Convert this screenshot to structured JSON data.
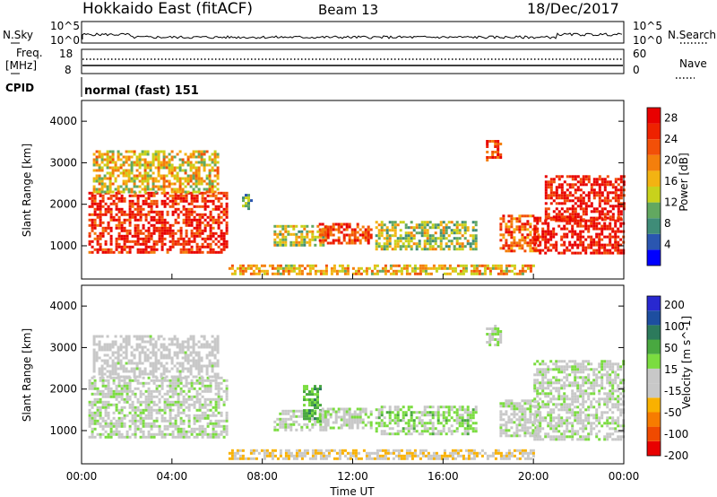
{
  "header": {
    "station": "Hokkaido East (fitACF)",
    "beam": "Beam 13",
    "date": "18/Dec/2017"
  },
  "top_panels": {
    "nsky_label": "N.Sky",
    "nsearch_label": "N.Search",
    "nave_label": "Nave",
    "freq_label_1": "Freq.",
    "freq_label_2": "[MHz]",
    "cpid_label": "CPID",
    "cpid_value": "normal (fast) 151",
    "noise_ticks": [
      "10^5",
      "10^0"
    ],
    "freq_ticks": [
      "18",
      "8"
    ],
    "nave_ticks": [
      "60",
      "0"
    ]
  },
  "colors": {
    "power_scale": [
      "#0000ff",
      "#2a56b0",
      "#3f8c78",
      "#62a860",
      "#c8d21c",
      "#f3b312",
      "#f47f0c",
      "#f25008",
      "#ee2200",
      "#e80000"
    ],
    "velocity_scale": [
      "#e80000",
      "#f04a00",
      "#f77c00",
      "#f9b100",
      "#c8c8c8",
      "#c8c8c8",
      "#7bdc40",
      "#49a840",
      "#2c7a5c",
      "#1d4ea0",
      "#2828d0"
    ]
  },
  "chart_data": [
    {
      "type": "heatmap",
      "name": "power",
      "xlabel": "",
      "ylabel": "Slant Range [km]",
      "yticks": [
        "1000",
        "2000",
        "3000",
        "4000"
      ],
      "ylim": [
        200,
        4500
      ],
      "colorbar_title": "Power [dB]",
      "colorbar_ticks": [
        "4",
        "8",
        "12",
        "16",
        "20",
        "24",
        "28"
      ],
      "colorbar_range": [
        0,
        30
      ],
      "xlim_hours": [
        0,
        24
      ],
      "regions": [
        {
          "x": [
            0.3,
            6.4
          ],
          "y": [
            850,
            2300
          ],
          "level": 26
        },
        {
          "x": [
            0.5,
            6.0
          ],
          "y": [
            2300,
            3300
          ],
          "level": 16
        },
        {
          "x": [
            7.1,
            7.5
          ],
          "y": [
            1900,
            2250
          ],
          "level": 10
        },
        {
          "x": [
            8.5,
            10.8
          ],
          "y": [
            1000,
            1500
          ],
          "level": 14
        },
        {
          "x": [
            10.5,
            12.8
          ],
          "y": [
            1050,
            1550
          ],
          "level": 24
        },
        {
          "x": [
            13.0,
            17.5
          ],
          "y": [
            950,
            1600
          ],
          "level": 13
        },
        {
          "x": [
            17.9,
            18.5
          ],
          "y": [
            3050,
            3550
          ],
          "level": 24
        },
        {
          "x": [
            18.5,
            20.2
          ],
          "y": [
            900,
            1750
          ],
          "level": 22
        },
        {
          "x": [
            20.0,
            24.0
          ],
          "y": [
            800,
            1700
          ],
          "level": 28
        },
        {
          "x": [
            20.5,
            24.0
          ],
          "y": [
            1600,
            2700
          ],
          "level": 27
        },
        {
          "x": [
            6.5,
            20.0
          ],
          "y": [
            300,
            550
          ],
          "level": 17
        }
      ]
    },
    {
      "type": "heatmap",
      "name": "velocity",
      "xlabel": "Time UT",
      "ylabel": "Slant Range [km]",
      "xticks": [
        "00:00",
        "04:00",
        "08:00",
        "12:00",
        "16:00",
        "20:00",
        "00:00"
      ],
      "yticks": [
        "1000",
        "2000",
        "3000",
        "4000"
      ],
      "ylim": [
        200,
        4500
      ],
      "colorbar_title": "Velocity [m s^-1]",
      "colorbar_ticks": [
        "200",
        "100",
        "50",
        "15",
        "-15",
        "-50",
        "-100",
        "-200"
      ],
      "colorbar_range": [
        -250,
        250
      ],
      "xlim_hours": [
        0,
        24
      ],
      "regions": [
        {
          "x": [
            0.3,
            6.4
          ],
          "y": [
            850,
            2300
          ],
          "level": 0
        },
        {
          "x": [
            0.5,
            6.0
          ],
          "y": [
            2300,
            3300
          ],
          "level": -20
        },
        {
          "x": [
            8.5,
            10.8
          ],
          "y": [
            1000,
            1500
          ],
          "level": 0
        },
        {
          "x": [
            9.8,
            10.6
          ],
          "y": [
            1200,
            2100
          ],
          "level": 80
        },
        {
          "x": [
            10.5,
            12.8
          ],
          "y": [
            1050,
            1550
          ],
          "level": 0
        },
        {
          "x": [
            13.0,
            17.5
          ],
          "y": [
            950,
            1600
          ],
          "level": 30
        },
        {
          "x": [
            17.9,
            18.5
          ],
          "y": [
            3050,
            3550
          ],
          "level": 0
        },
        {
          "x": [
            18.5,
            20.2
          ],
          "y": [
            900,
            1750
          ],
          "level": 0
        },
        {
          "x": [
            20.0,
            24.0
          ],
          "y": [
            800,
            2700
          ],
          "level": 0
        },
        {
          "x": [
            6.5,
            20.0
          ],
          "y": [
            300,
            550
          ],
          "level": -60
        }
      ]
    }
  ]
}
